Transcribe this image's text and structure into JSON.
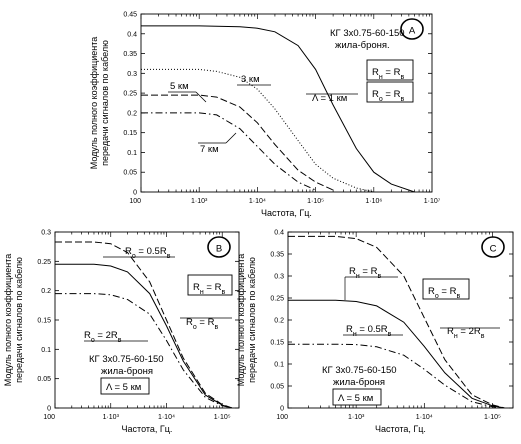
{
  "chart_data": [
    {
      "type": "line",
      "panel_letter": "A",
      "x_scale": "log",
      "xlim": [
        100,
        10000000
      ],
      "ylim": [
        0,
        0.45
      ],
      "xticks": [
        100,
        1000,
        10000,
        100000,
        1000000,
        10000000
      ],
      "xtick_labels": [
        "100",
        "1·10³",
        "1·10⁴",
        "1·10⁵",
        "1·10⁶",
        "1·10⁷"
      ],
      "yticks": [
        0,
        0.05,
        0.1,
        0.15,
        0.2,
        0.25,
        0.3,
        0.35,
        0.4,
        0.45
      ],
      "ytick_labels": [
        "0",
        "0.05",
        "0.1",
        "0.15",
        "0.2",
        "0.25",
        "0.3",
        "0.35",
        "0.4",
        "0.45"
      ],
      "xlabel": "Частота, Гц.",
      "ylabel": [
        "Модуль полного коэффициента",
        "передачи сигналов по кабелю"
      ],
      "annotations": [
        "КГ 3х0.75-60-150",
        "жила-броня.",
        "R",
        "н",
        " = R",
        "в",
        "R",
        "o",
        " = R",
        "в"
      ],
      "series": [
        {
          "name": "Λ = 1 км",
          "name_text": "Λ = 1 км",
          "style": "solid",
          "x": [
            100,
            1000,
            5000,
            10000,
            20000,
            50000,
            100000,
            200000,
            500000,
            1000000,
            2000000,
            5000000
          ],
          "y": [
            0.42,
            0.42,
            0.418,
            0.414,
            0.405,
            0.37,
            0.31,
            0.22,
            0.11,
            0.05,
            0.02,
            0.0
          ]
        },
        {
          "name": "3 км",
          "name_text": "3 км",
          "style": "dotted",
          "x": [
            100,
            1000,
            2000,
            5000,
            10000,
            20000,
            50000,
            100000,
            200000,
            500000,
            1000000
          ],
          "y": [
            0.31,
            0.31,
            0.305,
            0.29,
            0.26,
            0.21,
            0.13,
            0.07,
            0.035,
            0.01,
            0.0
          ]
        },
        {
          "name": "5 км",
          "name_text": "5 км",
          "style": "dashed",
          "x": [
            100,
            1000,
            2000,
            5000,
            10000,
            20000,
            50000,
            100000,
            200000
          ],
          "y": [
            0.245,
            0.245,
            0.24,
            0.215,
            0.175,
            0.12,
            0.055,
            0.025,
            0.005
          ]
        },
        {
          "name": "7 км",
          "name_text": "7 км",
          "style": "dashdot",
          "x": [
            100,
            1000,
            2000,
            5000,
            10000,
            20000,
            50000,
            100000
          ],
          "y": [
            0.2,
            0.2,
            0.195,
            0.16,
            0.115,
            0.07,
            0.025,
            0.005
          ]
        }
      ]
    },
    {
      "type": "line",
      "panel_letter": "B",
      "x_scale": "log",
      "xlim": [
        100,
        200000
      ],
      "ylim": [
        0,
        0.3
      ],
      "xticks": [
        100,
        1000,
        10000,
        100000
      ],
      "xtick_labels": [
        "100",
        "1·10³",
        "1·10⁴",
        "1·10⁵"
      ],
      "yticks": [
        0,
        0.05,
        0.1,
        0.15,
        0.2,
        0.25,
        0.3
      ],
      "ytick_labels": [
        "0",
        "0.05",
        "0.1",
        "0.15",
        "0.2",
        "0.25",
        "0.3"
      ],
      "xlabel": "Частота, Гц.",
      "ylabel": [
        "Модуль полного коэффициента",
        "передачи сигналов по кабелю"
      ],
      "annotations": [
        "КГ 3х0.75-60-150",
        "жила-броня",
        "Λ = 5 км",
        "R",
        "н",
        " = R",
        "в"
      ],
      "series": [
        {
          "name": "R",
          "name_sub": "o",
          "name_tail": " = 0.5R",
          "name_sub2": "в",
          "style": "dashed",
          "x": [
            100,
            500,
            1000,
            2000,
            5000,
            10000,
            20000,
            50000,
            100000,
            150000
          ],
          "y": [
            0.283,
            0.283,
            0.28,
            0.265,
            0.215,
            0.15,
            0.085,
            0.025,
            0.006,
            0.0
          ]
        },
        {
          "name": "R",
          "name_sub": "o",
          "name_tail": " = R",
          "name_sub2": "в",
          "style": "solid",
          "x": [
            100,
            500,
            1000,
            2000,
            5000,
            10000,
            20000,
            50000,
            100000,
            150000
          ],
          "y": [
            0.245,
            0.245,
            0.242,
            0.232,
            0.195,
            0.14,
            0.08,
            0.022,
            0.005,
            0.0
          ]
        },
        {
          "name": "R",
          "name_sub": "o",
          "name_tail": " = 2R",
          "name_sub2": "в",
          "style": "dashdot",
          "x": [
            100,
            500,
            1000,
            2000,
            5000,
            10000,
            20000,
            50000,
            100000,
            150000
          ],
          "y": [
            0.195,
            0.195,
            0.193,
            0.185,
            0.16,
            0.115,
            0.065,
            0.018,
            0.004,
            0.0
          ]
        }
      ]
    },
    {
      "type": "line",
      "panel_letter": "C",
      "x_scale": "log",
      "xlim": [
        100,
        200000
      ],
      "ylim": [
        0,
        0.4
      ],
      "xticks": [
        100,
        1000,
        10000,
        100000
      ],
      "xtick_labels": [
        "100",
        "1·10³",
        "1·10⁴",
        "1·10⁵"
      ],
      "yticks": [
        0,
        0.05,
        0.1,
        0.15,
        0.2,
        0.25,
        0.3,
        0.35,
        0.4
      ],
      "ytick_labels": [
        "0",
        "0.05",
        "0.1",
        "0.15",
        "0.2",
        "0.25",
        "0.3",
        "0.35",
        "0.4"
      ],
      "xlabel": "Частота, Гц.",
      "ylabel": [
        "Модуль полного коэффициента",
        "передачи сигналов по кабелю"
      ],
      "annotations": [
        "КГ 3х0.75-60-150",
        "жила-броня",
        "Λ = 5 км",
        "R",
        "o",
        " = R",
        "в"
      ],
      "series": [
        {
          "name": "R",
          "name_sub": "н",
          "name_tail": " = R",
          "name_sub2": "в",
          "style": "solid",
          "x": [
            100,
            500,
            1000,
            2000,
            5000,
            10000,
            20000,
            50000,
            100000,
            150000
          ],
          "y": [
            0.245,
            0.245,
            0.242,
            0.232,
            0.195,
            0.14,
            0.08,
            0.022,
            0.005,
            0.0
          ]
        },
        {
          "name": "R",
          "name_sub": "н",
          "name_tail": " = 2R",
          "name_sub2": "в",
          "style": "dashed",
          "x": [
            100,
            500,
            1000,
            2000,
            5000,
            10000,
            20000,
            50000,
            100000,
            150000
          ],
          "y": [
            0.39,
            0.39,
            0.385,
            0.365,
            0.3,
            0.205,
            0.11,
            0.03,
            0.007,
            0.0
          ]
        },
        {
          "name": "R",
          "name_sub": "н",
          "name_tail": " = 0.5R",
          "name_sub2": "в",
          "style": "dashdot",
          "x": [
            100,
            500,
            1000,
            2000,
            5000,
            10000,
            20000,
            50000,
            100000,
            150000
          ],
          "y": [
            0.145,
            0.145,
            0.144,
            0.139,
            0.12,
            0.088,
            0.052,
            0.014,
            0.003,
            0.0
          ]
        }
      ]
    }
  ]
}
